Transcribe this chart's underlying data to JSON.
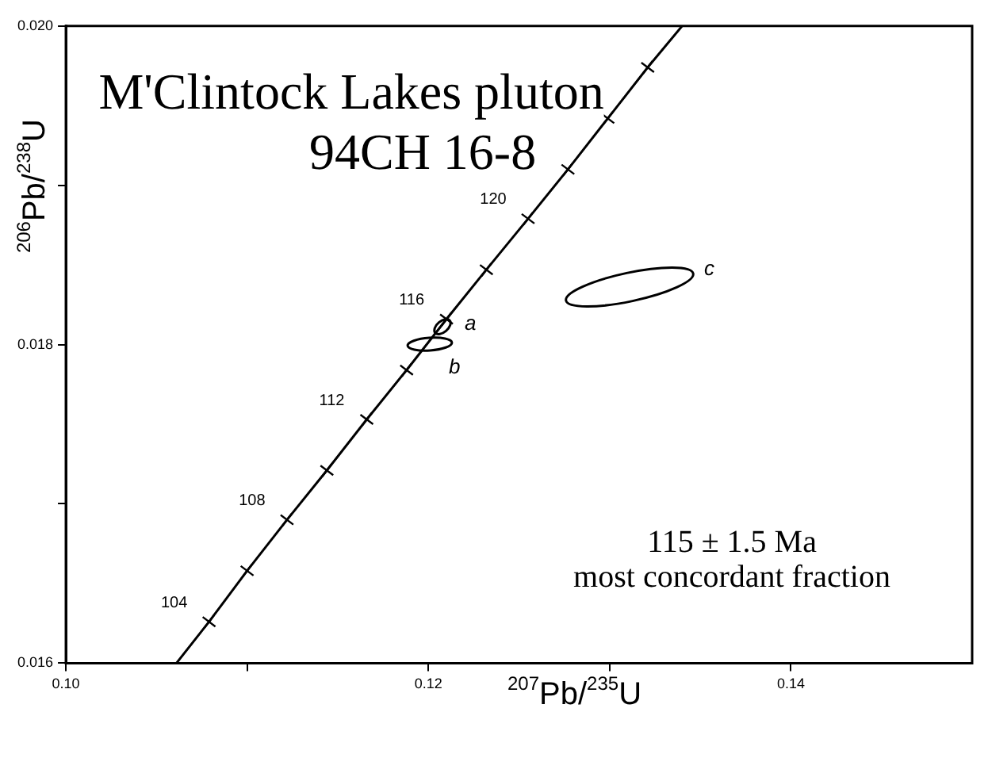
{
  "chart_data": {
    "type": "line",
    "title": "M'Clintock Lakes pluton",
    "subtitle": "94CH 16-8",
    "xlabel": "$^{207}$Pb/$^{235}$U",
    "ylabel": "$^{206}$Pb/$^{238}$U",
    "series": [
      {
        "color": "#000000",
        "marker": "cross",
        "x": [
          0.1061,
          0.1079,
          0.11,
          0.1122,
          0.1144,
          0.1166,
          0.1188,
          0.121,
          0.1232,
          0.1255,
          0.1277,
          0.1299,
          0.1321,
          0.134
        ],
        "values": [
          0.016,
          0.01626,
          0.01658,
          0.0169,
          0.01721,
          0.01753,
          0.01784,
          0.01816,
          0.01847,
          0.01879,
          0.0191,
          0.01942,
          0.01974,
          0.02
        ]
      }
    ],
    "xlim": [
      0.1,
      0.15
    ],
    "ylim": [
      0.016,
      0.02
    ],
    "xticks": [
      {
        "value": 0.1,
        "label": "0.10"
      },
      {
        "value": 0.11,
        "label": null
      },
      0.12,
      {
        "value": 0.13,
        "label": null
      },
      0.14
    ],
    "yticks": [
      0.016,
      {
        "value": 0.017,
        "label": null
      },
      0.018,
      {
        "value": 0.019,
        "label": null
      },
      {
        "value": 0.02,
        "label": "0.020"
      }
    ],
    "grid": false,
    "legend": false,
    "annotations": [
      {
        "text": "104",
        "x": 0.1079,
        "y": 0.01626
      },
      {
        "text": "108",
        "x": 0.1122,
        "y": 0.0169
      },
      {
        "text": "112",
        "x": 0.1166,
        "y": 0.01753
      },
      {
        "text": "116",
        "x": 0.121,
        "y": 0.01816
      },
      {
        "text": "120",
        "x": 0.1255,
        "y": 0.01879
      },
      {
        "text": "a",
        "x": 0.1213,
        "y": 0.01813
      },
      "b",
      "c",
      "115 ± 1.5 Ma",
      "most concordant fraction"
    ]
  }
}
